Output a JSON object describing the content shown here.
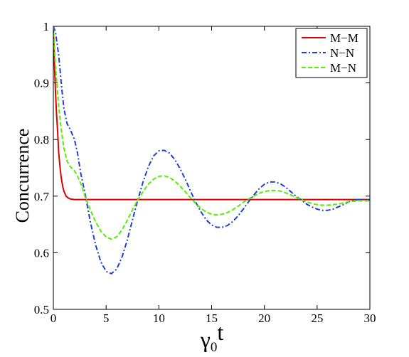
{
  "chart_data": {
    "type": "line",
    "xlabel": "γ0t",
    "xlabel_main": "γ",
    "xlabel_sub": "0",
    "xlabel_tail": "t",
    "ylabel": "Concurrence",
    "xlim": [
      0,
      30
    ],
    "ylim": [
      0.5,
      1.0
    ],
    "xticks": [
      0,
      5,
      10,
      15,
      20,
      25,
      30
    ],
    "yticks": [
      0.5,
      0.6,
      0.7,
      0.8,
      0.9,
      1.0
    ],
    "ytick_labels": [
      "0.5",
      "0.6",
      "0.7",
      "0.8",
      "0.9",
      "1"
    ],
    "grid": false,
    "legend_position": "top-right",
    "series": [
      {
        "name": "M−M",
        "color": "#dd0000",
        "dash": "solid",
        "x": [
          0,
          0.1,
          0.2,
          0.3,
          0.4,
          0.5,
          0.6,
          0.7,
          0.8,
          0.9,
          1.0,
          1.2,
          1.4,
          1.6,
          2.0,
          3,
          5,
          10,
          15,
          20,
          25,
          30
        ],
        "y": [
          1.0,
          0.935,
          0.885,
          0.846,
          0.816,
          0.779,
          0.757,
          0.74,
          0.726,
          0.716,
          0.709,
          0.7,
          0.697,
          0.695,
          0.694,
          0.694,
          0.694,
          0.694,
          0.694,
          0.694,
          0.694,
          0.694
        ]
      },
      {
        "name": "N−N",
        "color": "#1f3fd6",
        "dash": "dashdot",
        "x": [
          0,
          0.2,
          0.5,
          0.8,
          1.0,
          1.3,
          1.6,
          2.0,
          2.3,
          2.6,
          3.0,
          3.5,
          4.0,
          4.5,
          5.0,
          5.5,
          6.0,
          6.5,
          7.0,
          7.5,
          8.0,
          8.5,
          9.0,
          9.5,
          10.0,
          10.5,
          11.0,
          11.5,
          12.0,
          12.5,
          13.0,
          13.5,
          14.0,
          14.5,
          15.0,
          15.5,
          16.0,
          16.5,
          17.0,
          17.5,
          18.0,
          18.5,
          19.0,
          19.5,
          20.0,
          20.5,
          21.0,
          21.5,
          22.0,
          22.5,
          23.0,
          23.5,
          24.0,
          24.5,
          25.0,
          25.5,
          26.0,
          26.5,
          27.0,
          27.5,
          28.0,
          28.5,
          29.0,
          29.5,
          30.0
        ],
        "y": [
          1.0,
          0.99,
          0.95,
          0.89,
          0.855,
          0.828,
          0.818,
          0.8,
          0.775,
          0.74,
          0.705,
          0.655,
          0.614,
          0.584,
          0.567,
          0.563,
          0.571,
          0.592,
          0.622,
          0.658,
          0.693,
          0.725,
          0.752,
          0.771,
          0.78,
          0.781,
          0.776,
          0.765,
          0.749,
          0.73,
          0.709,
          0.689,
          0.672,
          0.658,
          0.649,
          0.645,
          0.645,
          0.648,
          0.655,
          0.665,
          0.677,
          0.69,
          0.702,
          0.713,
          0.721,
          0.725,
          0.725,
          0.722,
          0.716,
          0.708,
          0.7,
          0.693,
          0.686,
          0.681,
          0.677,
          0.675,
          0.675,
          0.677,
          0.681,
          0.685,
          0.69,
          0.693,
          0.694,
          0.694,
          0.693
        ]
      },
      {
        "name": "M−N",
        "color": "#55ee00",
        "dash": "dashed",
        "x": [
          0,
          0.2,
          0.5,
          0.8,
          1.0,
          1.3,
          1.6,
          2.0,
          2.3,
          2.6,
          3.0,
          3.5,
          4.0,
          4.5,
          5.0,
          5.5,
          6.0,
          6.5,
          7.0,
          7.5,
          8.0,
          8.5,
          9.0,
          9.5,
          10.0,
          10.5,
          11.0,
          11.5,
          12.0,
          12.5,
          13.0,
          13.5,
          14.0,
          14.5,
          15.0,
          15.5,
          16.0,
          16.5,
          17.0,
          17.5,
          18.0,
          18.5,
          19.0,
          19.5,
          20.0,
          20.5,
          21.0,
          21.5,
          22.0,
          22.5,
          23.0,
          23.5,
          24.0,
          24.5,
          25.0,
          25.5,
          26.0,
          26.5,
          27.0,
          27.5,
          28.0,
          28.5,
          29.0,
          29.5,
          30.0
        ],
        "y": [
          1.0,
          0.93,
          0.86,
          0.81,
          0.785,
          0.762,
          0.752,
          0.745,
          0.735,
          0.722,
          0.7,
          0.676,
          0.655,
          0.638,
          0.628,
          0.624,
          0.628,
          0.64,
          0.657,
          0.676,
          0.693,
          0.708,
          0.721,
          0.73,
          0.735,
          0.736,
          0.733,
          0.727,
          0.718,
          0.708,
          0.697,
          0.687,
          0.678,
          0.672,
          0.668,
          0.667,
          0.668,
          0.671,
          0.676,
          0.682,
          0.689,
          0.695,
          0.7,
          0.705,
          0.708,
          0.71,
          0.71,
          0.709,
          0.706,
          0.702,
          0.698,
          0.694,
          0.69,
          0.687,
          0.685,
          0.684,
          0.684,
          0.685,
          0.686,
          0.688,
          0.69,
          0.691,
          0.692,
          0.692,
          0.692
        ]
      }
    ]
  }
}
